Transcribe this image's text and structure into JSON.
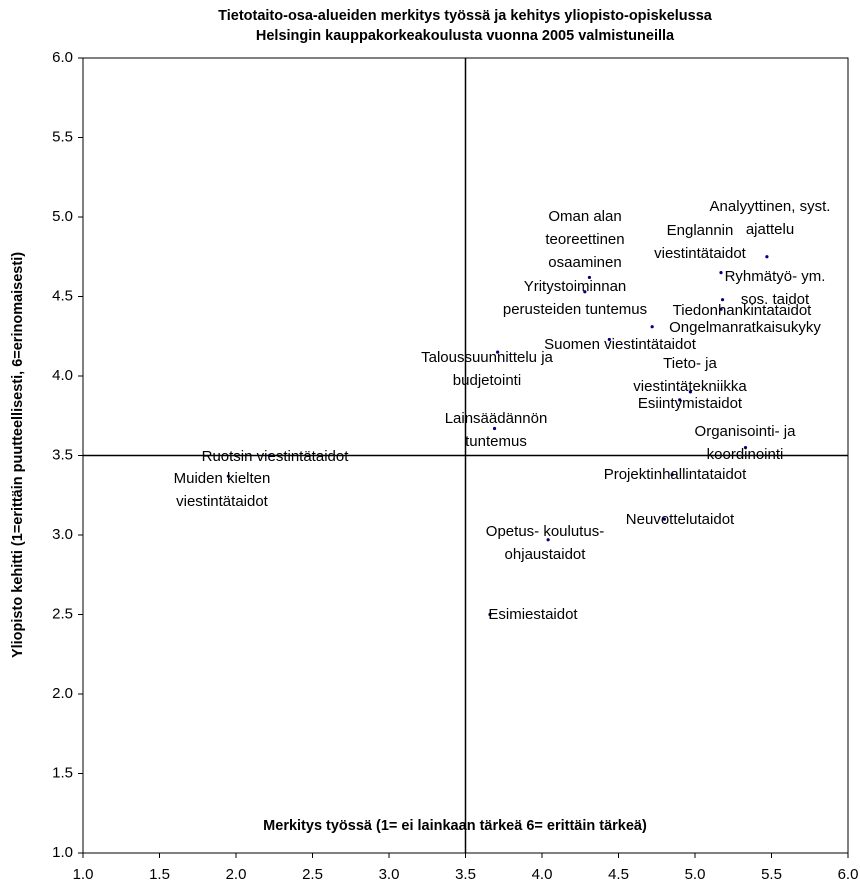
{
  "chart_data": {
    "type": "scatter",
    "title": [
      "Tietotaito-osa-alueiden merkitys työssä ja kehitys yliopisto-opiskelussa",
      "Helsingin kauppakorkeakoulusta vuonna 2005 valmistuneilla"
    ],
    "xlabel": "Merkitys työssä (1= ei lainkaan tärkeä  6= erittäin tärkeä)",
    "ylabel": "Yliopisto kehitti (1=erittäin puutteellisesti, 6=erinomaisesti)",
    "labels": [
      [
        "Analyyttinen, syst.",
        "ajattelu"
      ],
      [
        "Englannin",
        "viestintätaidot"
      ],
      [
        "Ryhmätyö- ym.",
        "sos. taidot"
      ],
      [
        "Tiedonhankintataidot"
      ],
      [
        "Ongelmanratkaisukyky"
      ],
      [
        "Oman alan",
        "teoreettinen",
        "osaaminen"
      ],
      [
        "Yritystoiminnan",
        "perusteiden tuntemus"
      ],
      [
        "Suomen viestintätaidot"
      ],
      [
        "Taloussuunnittelu ja",
        "budjetointi"
      ],
      [
        "Tieto- ja",
        "viestintätekniikka"
      ],
      [
        "Esiintymistaidot"
      ],
      [
        "Lainsäädännön",
        "tuntemus"
      ],
      [
        "Organisointi- ja",
        "koordinointi"
      ],
      [
        "Ruotsin viestintätaidot"
      ],
      [
        "Muiden kielten",
        "viestintätaidot"
      ],
      [
        "Projektinhallintataidot"
      ],
      [
        "Neuvottelutaidot"
      ],
      [
        "Opetus- koulutus-",
        "ohjaustaidot"
      ],
      [
        "Esimiestaidot"
      ]
    ],
    "x": [
      5.47,
      5.17,
      5.18,
      5.17,
      4.72,
      4.31,
      4.28,
      4.44,
      3.71,
      4.97,
      4.9,
      3.69,
      5.33,
      2.22,
      1.95,
      4.85,
      4.8,
      4.04,
      3.66
    ],
    "y": [
      4.75,
      4.65,
      4.48,
      4.42,
      4.31,
      4.62,
      4.53,
      4.23,
      4.15,
      3.9,
      3.85,
      3.67,
      3.55,
      3.5,
      3.37,
      3.38,
      3.1,
      2.97,
      2.5
    ],
    "color": "#000080",
    "xlim": [
      1,
      6
    ],
    "ylim": [
      1,
      6
    ],
    "xticks": [
      {
        "value": 1,
        "label": "1.0"
      },
      1.5,
      {
        "value": 2,
        "label": "2.0"
      },
      2.5,
      {
        "value": 3,
        "label": "3.0"
      },
      3.5,
      {
        "value": 4,
        "label": "4.0"
      },
      4.5,
      {
        "value": 5,
        "label": "5.0"
      },
      5.5,
      {
        "value": 6,
        "label": "6.0"
      }
    ],
    "yticks": [
      {
        "value": 1,
        "label": "1.0"
      },
      1.5,
      {
        "value": 2,
        "label": "2.0"
      },
      2.5,
      {
        "value": 3,
        "label": "3.0"
      },
      3.5,
      {
        "value": 4,
        "label": "4.0"
      },
      4.5,
      {
        "value": 5,
        "label": "5.0"
      },
      5.5,
      {
        "value": 6,
        "label": "6.0"
      }
    ],
    "reference_x": 3.5,
    "reference_y": 3.5
  }
}
